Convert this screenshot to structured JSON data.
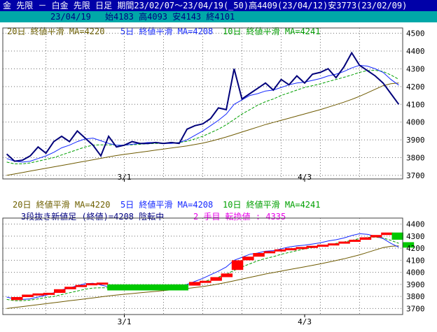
{
  "header": {
    "title": "金 先限 － 白金 先限 日足 期間23/02/07～23/04/19(_50)高4409(23/04/12)安3773(23/02/09)",
    "date": "23/04/19",
    "ohlc": "始4183 高4093 安4143 終4101"
  },
  "colors": {
    "price": "#00007a",
    "ma5": "#1428ff",
    "ma10": "#00a000",
    "ma20": "#6e5a00",
    "ma20_text": "#6e6000",
    "up_box": "#ff0000",
    "down_box": "#00c800",
    "grid": "#6e6e6e",
    "header_bg": "#0000a8",
    "subheader_bg": "#00a8a8",
    "kagi_text": "#000080",
    "kagi_pink": "#e800e8"
  },
  "top_legend": {
    "ma20": "20日 終値平滑 MA=4220",
    "ma5": "5日 終値平滑 MA=4208",
    "ma10": "10日 終値平滑 MA=4241"
  },
  "bottom_legend": {
    "ma20": "20日 終値平滑 MA=4220",
    "ma5": "5日 終値平滑 MA=4208",
    "ma10": "10日 終値平滑 MA=4241",
    "kagi_label": "3段抜き新値足 (終値)=4208 陰転中",
    "kagi_state": "2 手目 転換値 : 4335"
  },
  "chart_data": [
    {
      "type": "line",
      "x_ticks": [
        "3/1",
        "4/3"
      ],
      "x_tick_index": [
        15,
        38
      ],
      "y_ticks": [
        3700,
        3800,
        3900,
        4000,
        4100,
        4200,
        4300,
        4400,
        4500
      ],
      "ylim": [
        3680,
        4530
      ],
      "series": [
        {
          "key": "price",
          "values": [
            3820,
            3780,
            3785,
            3810,
            3860,
            3825,
            3890,
            3920,
            3890,
            3950,
            3910,
            3870,
            3810,
            3920,
            3860,
            3870,
            3890,
            3880,
            3880,
            3885,
            3880,
            3885,
            3880,
            3960,
            3980,
            3990,
            4020,
            4080,
            4070,
            4300,
            4130,
            4160,
            4190,
            4220,
            4180,
            4240,
            4210,
            4260,
            4220,
            4270,
            4280,
            4300,
            4250,
            4310,
            4390,
            4320,
            4290,
            4260,
            4220,
            4160,
            4100
          ]
        },
        {
          "key": "ma5",
          "values": [
            3795,
            3780,
            3775,
            3780,
            3795,
            3810,
            3830,
            3855,
            3870,
            3890,
            3905,
            3910,
            3895,
            3880,
            3870,
            3870,
            3875,
            3880,
            3885,
            3885,
            3880,
            3880,
            3885,
            3900,
            3925,
            3950,
            3980,
            4010,
            4045,
            4100,
            4125,
            4150,
            4160,
            4175,
            4180,
            4195,
            4210,
            4220,
            4225,
            4235,
            4245,
            4260,
            4270,
            4285,
            4305,
            4320,
            4315,
            4300,
            4280,
            4240,
            4208
          ]
        },
        {
          "key": "ma10",
          "values": [
            3775,
            3765,
            3765,
            3770,
            3780,
            3790,
            3800,
            3815,
            3830,
            3845,
            3860,
            3870,
            3872,
            3872,
            3870,
            3870,
            3872,
            3875,
            3878,
            3880,
            3880,
            3882,
            3885,
            3892,
            3905,
            3920,
            3940,
            3960,
            3985,
            4015,
            4045,
            4070,
            4095,
            4115,
            4130,
            4150,
            4165,
            4180,
            4195,
            4205,
            4215,
            4228,
            4240,
            4252,
            4265,
            4280,
            4290,
            4292,
            4285,
            4265,
            4241
          ]
        },
        {
          "key": "ma20",
          "values": [
            3700,
            3708,
            3716,
            3724,
            3732,
            3740,
            3748,
            3756,
            3764,
            3772,
            3780,
            3788,
            3796,
            3804,
            3812,
            3818,
            3824,
            3830,
            3836,
            3842,
            3848,
            3854,
            3860,
            3866,
            3874,
            3882,
            3892,
            3904,
            3916,
            3930,
            3944,
            3958,
            3972,
            3986,
            3998,
            4010,
            4022,
            4034,
            4046,
            4058,
            4070,
            4084,
            4098,
            4112,
            4128,
            4145,
            4165,
            4185,
            4205,
            4216,
            4220
          ]
        }
      ]
    },
    {
      "type": "line",
      "x_ticks": [
        "3/1",
        "4/3"
      ],
      "x_tick_index": [
        15,
        38
      ],
      "y_ticks": [
        3700,
        3800,
        3900,
        4000,
        4100,
        4200,
        4300,
        4400
      ],
      "ylim": [
        3650,
        4450
      ],
      "series_keys": [
        "ma5",
        "ma10",
        "ma20"
      ],
      "kagi_boxes": [
        {
          "dir": "up",
          "from": 3770,
          "to": 3795
        },
        {
          "dir": "up",
          "from": 3795,
          "to": 3815
        },
        {
          "dir": "up",
          "from": 3815,
          "to": 3825
        },
        {
          "dir": "up",
          "from": 3825,
          "to": 3830
        },
        {
          "dir": "up",
          "from": 3830,
          "to": 3860
        },
        {
          "dir": "up",
          "from": 3860,
          "to": 3880
        },
        {
          "dir": "up",
          "from": 3880,
          "to": 3895
        },
        {
          "dir": "up",
          "from": 3895,
          "to": 3910
        },
        {
          "dir": "up",
          "from": 3910,
          "to": 3915
        },
        {
          "dir": "down",
          "from": 3900,
          "to": 3850
        },
        {
          "dir": "up",
          "from": 3890,
          "to": 3920
        },
        {
          "dir": "up",
          "from": 3920,
          "to": 3930
        },
        {
          "dir": "up",
          "from": 3930,
          "to": 3960
        },
        {
          "dir": "up",
          "from": 3960,
          "to": 3990
        },
        {
          "dir": "up",
          "from": 4020,
          "to": 4100
        },
        {
          "dir": "up",
          "from": 4100,
          "to": 4130
        },
        {
          "dir": "up",
          "from": 4130,
          "to": 4160
        },
        {
          "dir": "up",
          "from": 4160,
          "to": 4175
        },
        {
          "dir": "up",
          "from": 4175,
          "to": 4190
        },
        {
          "dir": "up",
          "from": 4190,
          "to": 4200
        },
        {
          "dir": "up",
          "from": 4200,
          "to": 4210
        },
        {
          "dir": "up",
          "from": 4210,
          "to": 4220
        },
        {
          "dir": "up",
          "from": 4220,
          "to": 4230
        },
        {
          "dir": "up",
          "from": 4230,
          "to": 4240
        },
        {
          "dir": "up",
          "from": 4240,
          "to": 4255
        },
        {
          "dir": "up",
          "from": 4255,
          "to": 4270
        },
        {
          "dir": "up",
          "from": 4270,
          "to": 4290
        },
        {
          "dir": "up",
          "from": 4290,
          "to": 4310
        },
        {
          "dir": "up",
          "from": 4310,
          "to": 4330
        },
        {
          "dir": "down",
          "from": 4330,
          "to": 4270
        },
        {
          "dir": "down",
          "from": 4250,
          "to": 4205
        }
      ]
    }
  ]
}
